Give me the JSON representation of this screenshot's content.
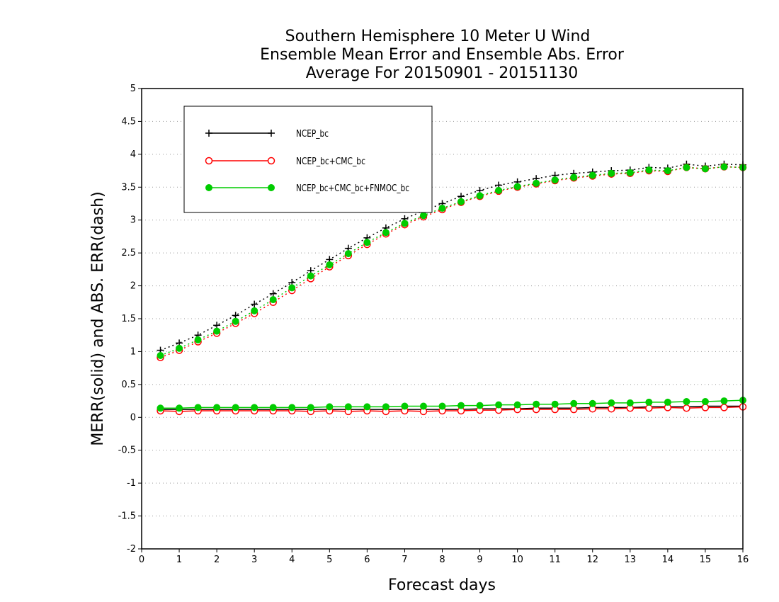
{
  "chart_data": {
    "type": "line",
    "title_lines": [
      "Southern Hemisphere 10 Meter U Wind",
      "Ensemble Mean Error and Ensemble Abs. Error",
      "Average For 20150901 - 20151130"
    ],
    "xlabel": "Forecast days",
    "ylabel": "MERR(solid) and ABS. ERR(dash)",
    "xlim": [
      0,
      16
    ],
    "ylim": [
      -2,
      5
    ],
    "xticks": [
      "0",
      "1",
      "2",
      "3",
      "4",
      "5",
      "6",
      "7",
      "8",
      "9",
      "10",
      "11",
      "12",
      "13",
      "14",
      "15",
      "16"
    ],
    "yticks": [
      "-2",
      "-1.5",
      "-1",
      "-0.5",
      "0",
      "0.5",
      "1",
      "1.5",
      "2",
      "2.5",
      "3",
      "3.5",
      "4",
      "4.5",
      "5"
    ],
    "grid": "horizontal dotted",
    "legend_position": "top-left",
    "x": [
      0.5,
      1,
      1.5,
      2,
      2.5,
      3,
      3.5,
      4,
      4.5,
      5,
      5.5,
      6,
      6.5,
      7,
      7.5,
      8,
      8.5,
      9,
      9.5,
      10,
      10.5,
      11,
      11.5,
      12,
      12.5,
      13,
      13.5,
      14,
      14.5,
      15,
      15.5,
      16
    ],
    "series": [
      {
        "name": "NCEP_bc",
        "color": "#000000",
        "marker": "plus",
        "abs_err": [
          1.02,
          1.13,
          1.25,
          1.4,
          1.55,
          1.72,
          1.88,
          2.05,
          2.23,
          2.4,
          2.57,
          2.73,
          2.88,
          3.02,
          3.14,
          3.25,
          3.36,
          3.45,
          3.53,
          3.58,
          3.63,
          3.68,
          3.71,
          3.73,
          3.75,
          3.76,
          3.8,
          3.79,
          3.85,
          3.82,
          3.85,
          3.84
        ],
        "mean_err": [
          0.12,
          0.12,
          0.12,
          0.12,
          0.12,
          0.12,
          0.12,
          0.12,
          0.12,
          0.12,
          0.12,
          0.12,
          0.12,
          0.12,
          0.12,
          0.12,
          0.12,
          0.13,
          0.13,
          0.13,
          0.14,
          0.14,
          0.14,
          0.15,
          0.15,
          0.15,
          0.16,
          0.16,
          0.16,
          0.17,
          0.17,
          0.17
        ]
      },
      {
        "name": "NCEP_bc+CMC_bc",
        "color": "#ff0000",
        "marker": "open-circle",
        "abs_err": [
          0.91,
          1.02,
          1.15,
          1.28,
          1.43,
          1.58,
          1.75,
          1.93,
          2.11,
          2.29,
          2.46,
          2.63,
          2.79,
          2.93,
          3.05,
          3.16,
          3.27,
          3.36,
          3.44,
          3.5,
          3.55,
          3.6,
          3.64,
          3.67,
          3.7,
          3.71,
          3.75,
          3.74,
          3.8,
          3.78,
          3.81,
          3.8
        ],
        "mean_err": [
          0.1,
          0.09,
          0.1,
          0.1,
          0.1,
          0.1,
          0.1,
          0.1,
          0.09,
          0.1,
          0.09,
          0.1,
          0.09,
          0.1,
          0.09,
          0.1,
          0.1,
          0.11,
          0.11,
          0.12,
          0.12,
          0.12,
          0.12,
          0.13,
          0.13,
          0.14,
          0.14,
          0.15,
          0.14,
          0.15,
          0.15,
          0.16
        ]
      },
      {
        "name": "NCEP_bc+CMC_bc+FNMOC_bc",
        "color": "#00cc00",
        "marker": "filled-circle",
        "abs_err": [
          0.94,
          1.05,
          1.18,
          1.31,
          1.46,
          1.62,
          1.79,
          1.97,
          2.15,
          2.32,
          2.49,
          2.66,
          2.81,
          2.95,
          3.07,
          3.18,
          3.28,
          3.37,
          3.45,
          3.51,
          3.56,
          3.61,
          3.65,
          3.68,
          3.71,
          3.72,
          3.76,
          3.75,
          3.8,
          3.78,
          3.81,
          3.8
        ],
        "mean_err": [
          0.14,
          0.14,
          0.15,
          0.15,
          0.15,
          0.15,
          0.15,
          0.15,
          0.15,
          0.16,
          0.16,
          0.16,
          0.16,
          0.17,
          0.17,
          0.17,
          0.18,
          0.18,
          0.19,
          0.19,
          0.2,
          0.2,
          0.21,
          0.21,
          0.22,
          0.22,
          0.23,
          0.23,
          0.24,
          0.24,
          0.25,
          0.26
        ]
      }
    ]
  }
}
